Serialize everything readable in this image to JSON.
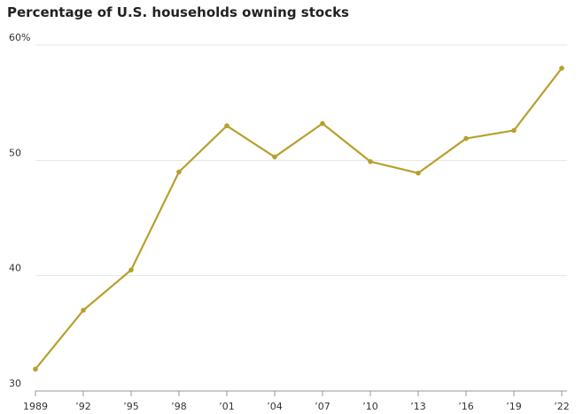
{
  "chart_data": {
    "type": "line",
    "title": "Percentage of U.S. households owning stocks",
    "categories": [
      "1989",
      "’92",
      "’95",
      "’98",
      "’01",
      "’04",
      "’07",
      "’10",
      "’13",
      "’16",
      "’19",
      "’22"
    ],
    "series": [
      {
        "color": "#b8a02e",
        "values": [
          31.9,
          37.0,
          40.5,
          49.0,
          53.0,
          50.3,
          53.2,
          49.9,
          48.9,
          51.9,
          52.6,
          58.0
        ]
      }
    ],
    "ylim": [
      30,
      60
    ],
    "yticks": [
      30,
      40,
      50,
      {
        "value": 60,
        "label": "60%"
      }
    ],
    "grid": true
  }
}
